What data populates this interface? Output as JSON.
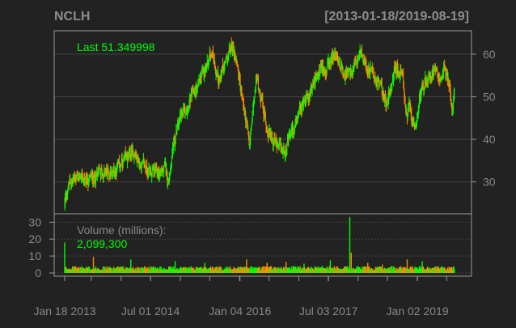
{
  "chart_data": {
    "type": "candlestick",
    "ticker": "NCLH",
    "date_range": "[2013-01-18/2019-08-19]",
    "last_label": "Last 51.349998",
    "volume_title": "Volume (millions):",
    "volume_last": "2,099,300",
    "x_tick_labels": [
      "Jan 18 2013",
      "Jul 01 2014",
      "Jan 04 2016",
      "Jul 03 2017",
      "Jan 02 2019"
    ],
    "x_tick_dates": [
      "2013-01-18",
      "2014-07-01",
      "2016-01-04",
      "2017-07-03",
      "2019-01-02"
    ],
    "x_start": "2013-01-18",
    "x_end": "2019-08-19",
    "price_ticks": [
      30,
      40,
      50,
      60
    ],
    "price_ylim": [
      22.5,
      65.5
    ],
    "volume_ticks": [
      0,
      10,
      20,
      30
    ],
    "volume_ylim": [
      0,
      34
    ],
    "price_path": [
      [
        "2013-01-18",
        25.0
      ],
      [
        "2013-02-15",
        29.5
      ],
      [
        "2013-04-01",
        31.5
      ],
      [
        "2013-06-01",
        30.0
      ],
      [
        "2013-08-01",
        31.5
      ],
      [
        "2013-10-01",
        32.0
      ],
      [
        "2013-12-01",
        33.0
      ],
      [
        "2014-02-01",
        35.0
      ],
      [
        "2014-03-15",
        37.0
      ],
      [
        "2014-05-01",
        34.0
      ],
      [
        "2014-07-01",
        32.5
      ],
      [
        "2014-08-15",
        32.0
      ],
      [
        "2014-10-01",
        33.0
      ],
      [
        "2014-10-20",
        30.0
      ],
      [
        "2014-11-15",
        38.0
      ],
      [
        "2015-01-01",
        45.0
      ],
      [
        "2015-03-01",
        49.0
      ],
      [
        "2015-04-15",
        52.0
      ],
      [
        "2015-06-01",
        56.0
      ],
      [
        "2015-07-15",
        61.0
      ],
      [
        "2015-08-25",
        54.0
      ],
      [
        "2015-10-01",
        57.0
      ],
      [
        "2015-11-15",
        62.0
      ],
      [
        "2015-12-15",
        58.5
      ],
      [
        "2016-01-20",
        49.0
      ],
      [
        "2016-02-15",
        43.0
      ],
      [
        "2016-03-01",
        38.0
      ],
      [
        "2016-04-15",
        54.5
      ],
      [
        "2016-05-15",
        50.0
      ],
      [
        "2016-06-20",
        42.0
      ],
      [
        "2016-07-15",
        41.0
      ],
      [
        "2016-09-01",
        37.0
      ],
      [
        "2016-10-01",
        37.0
      ],
      [
        "2016-11-15",
        41.0
      ],
      [
        "2017-01-01",
        45.0
      ],
      [
        "2017-02-15",
        50.0
      ],
      [
        "2017-04-01",
        53.0
      ],
      [
        "2017-05-15",
        56.0
      ],
      [
        "2017-07-01",
        57.0
      ],
      [
        "2017-08-15",
        60.0
      ],
      [
        "2017-10-01",
        56.0
      ],
      [
        "2017-11-15",
        55.0
      ],
      [
        "2018-01-20",
        59.5
      ],
      [
        "2018-03-01",
        57.0
      ],
      [
        "2018-04-01",
        55.0
      ],
      [
        "2018-05-15",
        53.0
      ],
      [
        "2018-07-01",
        48.0
      ],
      [
        "2018-08-15",
        57.0
      ],
      [
        "2018-10-01",
        55.0
      ],
      [
        "2018-10-30",
        44.5
      ],
      [
        "2018-11-15",
        47.5
      ],
      [
        "2018-12-24",
        41.0
      ],
      [
        "2019-01-20",
        51.0
      ],
      [
        "2019-02-15",
        53.0
      ],
      [
        "2019-04-01",
        56.0
      ],
      [
        "2019-05-01",
        58.0
      ],
      [
        "2019-05-20",
        54.0
      ],
      [
        "2019-06-20",
        57.0
      ],
      [
        "2019-07-15",
        53.0
      ],
      [
        "2019-08-05",
        47.5
      ],
      [
        "2019-08-19",
        51.35
      ]
    ],
    "volume_spikes": [
      [
        "2013-01-18",
        18.0
      ],
      [
        "2013-07-15",
        9.5
      ],
      [
        "2014-03-01",
        8.0
      ],
      [
        "2014-12-01",
        7.0
      ],
      [
        "2015-06-01",
        6.0
      ],
      [
        "2016-02-15",
        8.0
      ],
      [
        "2016-06-20",
        6.0
      ],
      [
        "2016-10-15",
        6.5
      ],
      [
        "2017-02-01",
        5.5
      ],
      [
        "2017-07-15",
        7.5
      ],
      [
        "2017-11-10",
        33.0
      ],
      [
        "2017-11-20",
        12.0
      ],
      [
        "2018-03-01",
        6.0
      ],
      [
        "2018-06-01",
        5.0
      ],
      [
        "2018-11-01",
        8.0
      ],
      [
        "2019-02-01",
        7.0
      ]
    ],
    "colors": {
      "background": "#222222",
      "grid": "#444444",
      "frame": "#999999",
      "axis_text": "#888888",
      "title_text": "#8c8c8c",
      "up": "#00ff00",
      "down": "#ff8c00",
      "last_text": "#00ff00",
      "volume_title": "#888888"
    }
  }
}
